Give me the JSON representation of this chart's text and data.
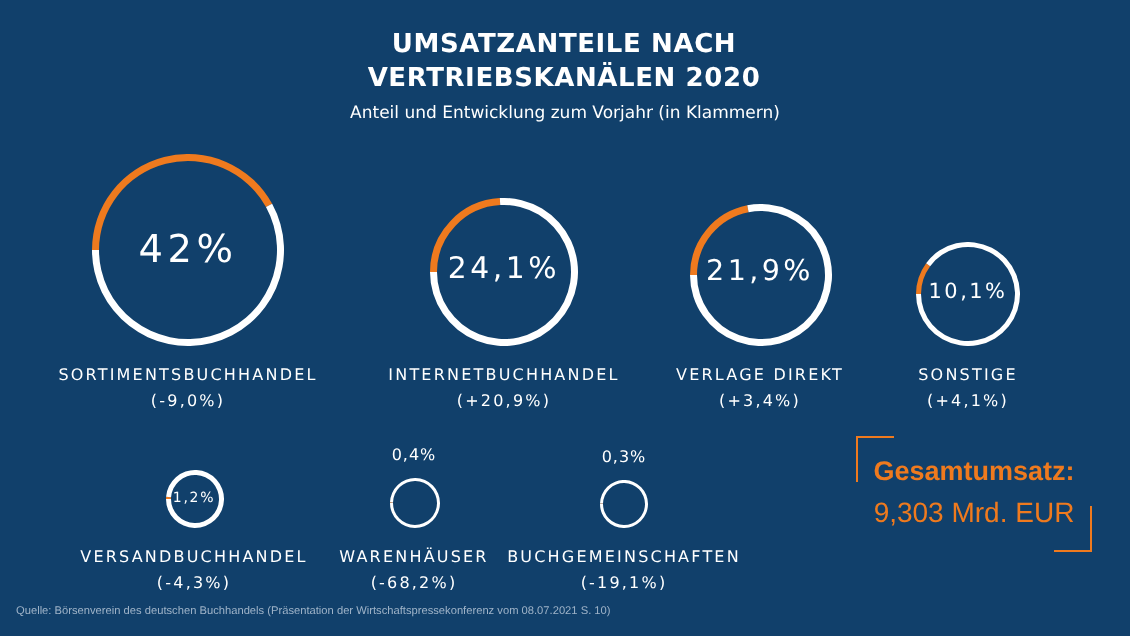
{
  "chart_data": {
    "type": "other",
    "title": "UMSATZANTEILE NACH VERTRIEBSKANÄLEN 2020",
    "subtitle": "Anteil und Entwicklung zum Vorjahr (in Klammern)",
    "color": "#ef7a1e",
    "categories": [
      "SORTIMENTSBUCHHANDEL",
      "INTERNETBUCHHANDEL",
      "VERLAGE DIREKT",
      "SONSTIGE",
      "VERSANDBUCHHANDEL",
      "WARENHÄUSER",
      "BUCHGEMEINSCHAFTEN"
    ],
    "values": [
      42,
      24.1,
      21.9,
      10.1,
      1.2,
      0.4,
      0.3
    ],
    "value_labels": [
      "42%",
      "24,1%",
      "21,9%",
      "10,1%",
      "1,2%",
      "0,4%",
      "0,3%"
    ],
    "annotations": [
      "(-9,0%)",
      "(+20,9%)",
      "(+3,4%)",
      "(+4,1%)",
      "(-4,3%)",
      "(-68,2%)",
      "(-19,1%)",
      "Gesamtumsatz:",
      "9,303 Mrd. EUR",
      "Quelle: Börsenverein des deutschen Buchhandels (Präsentation der Wirtschaftspressekonferenz vom 08.07.2021 S. 10)"
    ]
  }
}
